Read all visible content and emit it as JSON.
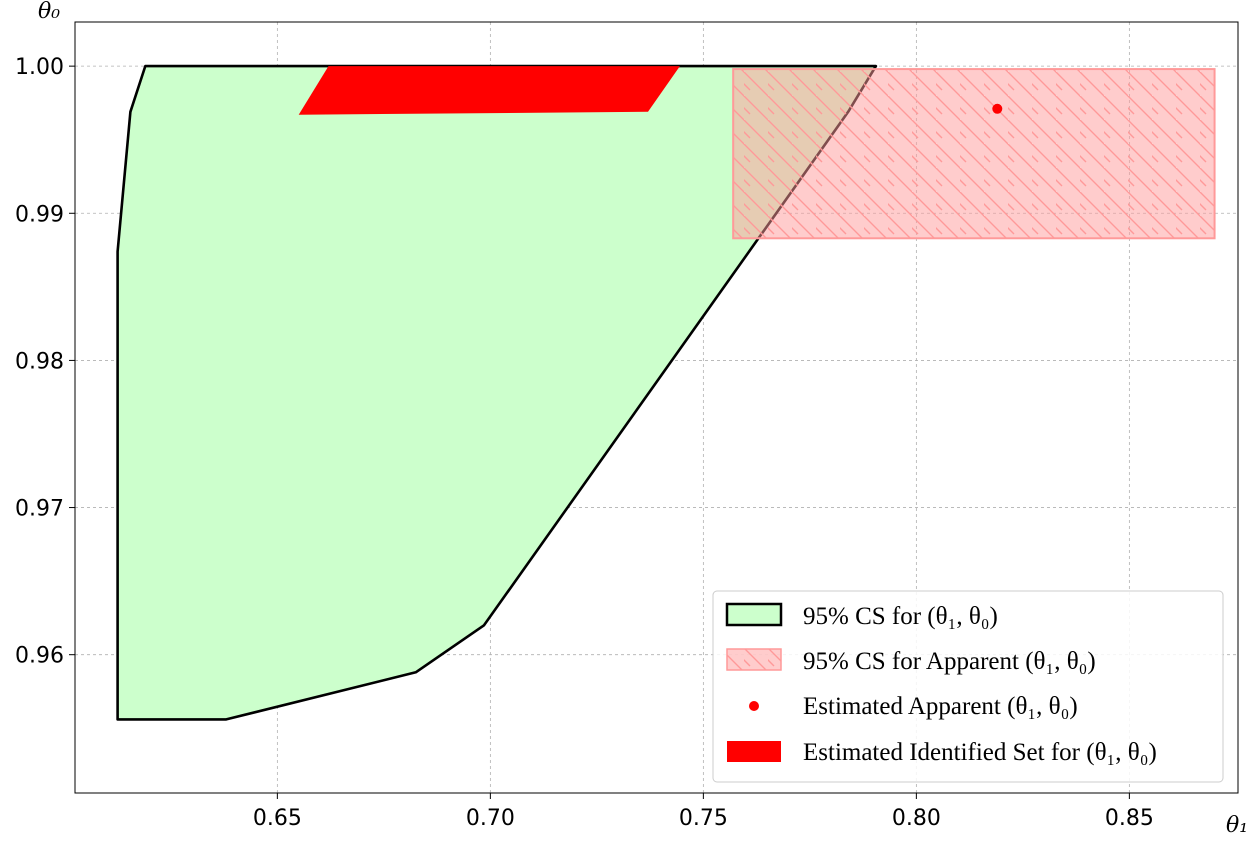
{
  "chart_data": {
    "type": "area",
    "title": "",
    "xlabel": "θ₁",
    "ylabel": "θ₀",
    "xlim": [
      0.6025,
      0.8755
    ],
    "ylim": [
      0.9506,
      1.003
    ],
    "xticks": [
      0.65,
      0.7,
      0.75,
      0.8,
      0.85
    ],
    "xtick_labels": [
      "0.65",
      "0.70",
      "0.75",
      "0.80",
      "0.85"
    ],
    "yticks": [
      0.96,
      0.97,
      0.98,
      0.99,
      1.0
    ],
    "ytick_labels": [
      "0.96",
      "0.97",
      "0.98",
      "0.99",
      "1.00"
    ],
    "grid": true,
    "legend_position": "bottom-right",
    "colors": {
      "cs_fill": "#ccffcc",
      "cs_edge": "#000000",
      "apparent_fill": "#ff9999",
      "apparent_hatch": "#ff9999",
      "point": "#ff0000",
      "identified_set": "#ff0000"
    },
    "series": [
      {
        "name": "95% CS for (θ₁, θ₀)",
        "kind": "polygon",
        "points": [
          [
            0.6125,
            0.9556
          ],
          [
            0.638,
            0.9556
          ],
          [
            0.6825,
            0.9588
          ],
          [
            0.6985,
            0.962
          ],
          [
            0.784,
            0.9969
          ],
          [
            0.7905,
            1.0
          ],
          [
            0.619,
            1.0
          ],
          [
            0.6155,
            0.9969
          ],
          [
            0.6125,
            0.9874
          ]
        ]
      },
      {
        "name": "95% CS for Apparent (θ₁, θ₀)",
        "kind": "rectangle",
        "x_range": [
          0.757,
          0.87
        ],
        "y_range": [
          0.9883,
          0.9998
        ]
      },
      {
        "name": "Estimated Apparent (θ₁, θ₀)",
        "kind": "point",
        "x": 0.819,
        "y": 0.9971
      },
      {
        "name": "Estimated Identified Set for (θ₁, θ₀)",
        "kind": "polygon",
        "points": [
          [
            0.655,
            0.9967
          ],
          [
            0.737,
            0.9969
          ],
          [
            0.7445,
            1.0
          ],
          [
            0.662,
            1.0
          ]
        ]
      }
    ]
  }
}
